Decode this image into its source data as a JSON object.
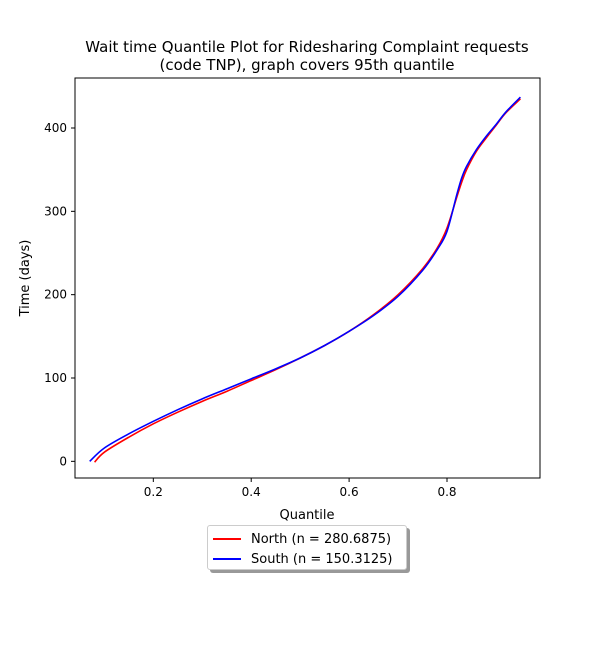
{
  "chart_data": {
    "type": "line",
    "title": [
      "Wait time Quantile Plot for Ridesharing Complaint  requests",
      "(code TNP), graph covers 95th quantile"
    ],
    "xlabel": "Quantile",
    "ylabel": "Time (days)",
    "xlim": [
      0.04,
      0.99
    ],
    "ylim": [
      -20,
      460
    ],
    "xticks": [
      0.2,
      0.4,
      0.6,
      0.8
    ],
    "xtick_labels": [
      "0.2",
      "0.4",
      "0.6",
      "0.8"
    ],
    "yticks": [
      0,
      100,
      200,
      300,
      400
    ],
    "ytick_labels": [
      "0",
      "100",
      "200",
      "300",
      "400"
    ],
    "grid": false,
    "legend_position": "below plot, centered",
    "series": [
      {
        "name": "North (n = 280.6875)",
        "color": "#ff0000",
        "x": [
          0.08,
          0.1,
          0.15,
          0.2,
          0.25,
          0.3,
          0.35,
          0.4,
          0.45,
          0.5,
          0.55,
          0.6,
          0.65,
          0.7,
          0.75,
          0.78,
          0.8,
          0.82,
          0.83,
          0.84,
          0.86,
          0.88,
          0.9,
          0.92,
          0.95
        ],
        "y": [
          -1,
          11,
          29,
          45,
          59,
          72,
          84,
          97,
          110,
          124,
          139,
          156,
          176,
          200,
          231,
          256,
          280,
          317,
          335,
          350,
          372,
          388,
          403,
          418,
          435
        ]
      },
      {
        "name": "South (n = 150.3125)",
        "color": "#0000ff",
        "x": [
          0.07,
          0.1,
          0.15,
          0.2,
          0.25,
          0.3,
          0.35,
          0.4,
          0.45,
          0.5,
          0.55,
          0.6,
          0.65,
          0.7,
          0.75,
          0.78,
          0.8,
          0.82,
          0.83,
          0.84,
          0.86,
          0.88,
          0.9,
          0.92,
          0.95
        ],
        "y": [
          0,
          16,
          33,
          48,
          62,
          75,
          87,
          99,
          111,
          124,
          139,
          156,
          175,
          198,
          229,
          254,
          276,
          320,
          340,
          354,
          374,
          390,
          404,
          419,
          437
        ]
      }
    ]
  }
}
